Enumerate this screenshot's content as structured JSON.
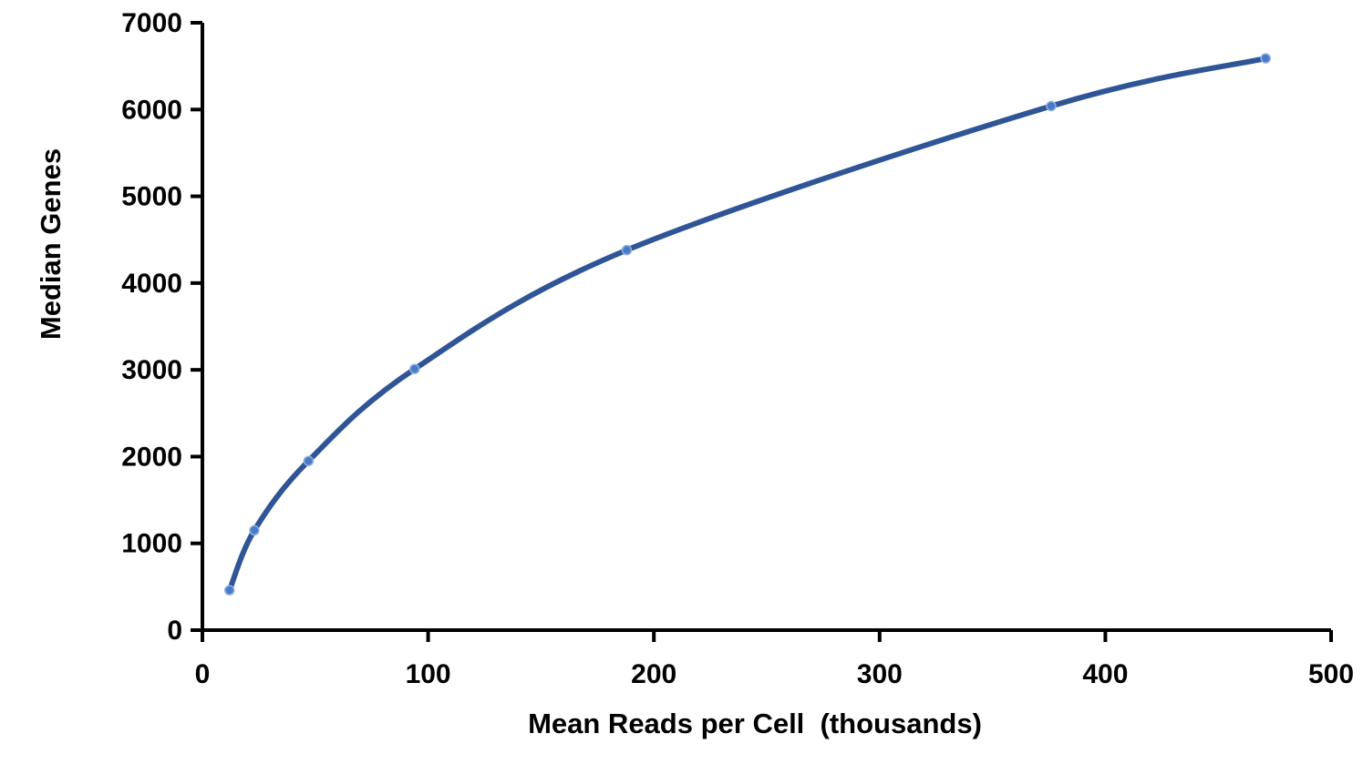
{
  "chart_data": {
    "type": "line",
    "title": "",
    "xlabel": "Mean Reads per Cell  (thousands)",
    "ylabel": "Median Genes",
    "xlim": [
      0,
      500
    ],
    "ylim": [
      0,
      7000
    ],
    "xticks": [
      0,
      100,
      200,
      300,
      400,
      500
    ],
    "yticks": [
      0,
      1000,
      2000,
      3000,
      4000,
      5000,
      6000,
      7000
    ],
    "x_tick_labels": [
      "0",
      "100",
      "200",
      "300",
      "400",
      "500"
    ],
    "y_tick_labels": [
      "0",
      "1000",
      "2000",
      "3000",
      "4000",
      "5000",
      "6000",
      "7000"
    ],
    "grid": false,
    "legend": "none",
    "series": [
      {
        "x": [
          12,
          23,
          47,
          94,
          188,
          376,
          471
        ],
        "y": [
          460,
          1150,
          1950,
          3010,
          4380,
          6040,
          6590
        ]
      }
    ],
    "colors": {
      "line": "#2f5597",
      "marker": "#4a7bc8",
      "axis": "#000000"
    }
  }
}
